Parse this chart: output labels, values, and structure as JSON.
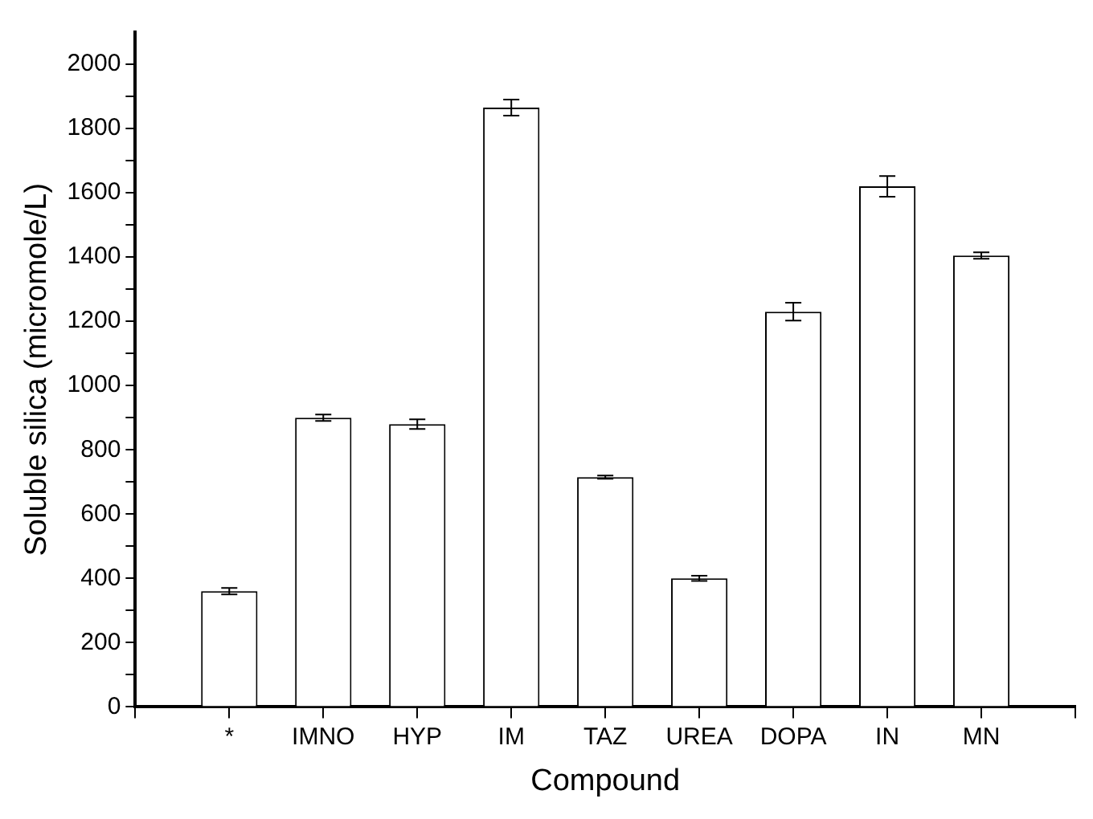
{
  "chart_data": {
    "type": "bar",
    "xlabel": "Compound",
    "ylabel": "Soluble silica (micromole/L)",
    "categories": [
      null,
      "*",
      "IMNO",
      "HYP",
      "IM",
      "TAZ",
      "UREA",
      "DOPA",
      "IN",
      "MN",
      null
    ],
    "values": [
      null,
      360,
      900,
      880,
      1865,
      715,
      400,
      1230,
      1620,
      1405,
      null
    ],
    "errors": [
      null,
      10,
      10,
      15,
      25,
      5,
      8,
      28,
      32,
      10,
      null
    ],
    "color": "#ffffff",
    "ylim": [
      0,
      2100
    ],
    "yticks": [
      0,
      {
        "value": 100,
        "label": null
      },
      200,
      {
        "value": 300,
        "label": null
      },
      400,
      {
        "value": 500,
        "label": null
      },
      600,
      {
        "value": 700,
        "label": null
      },
      800,
      {
        "value": 900,
        "label": null
      },
      1000,
      {
        "value": 1100,
        "label": null
      },
      1200,
      {
        "value": 1300,
        "label": null
      },
      1400,
      {
        "value": 1500,
        "label": null
      },
      1600,
      {
        "value": 1700,
        "label": null
      },
      1800,
      {
        "value": 1900,
        "label": null
      },
      2000
    ],
    "grid": false,
    "legend": false
  }
}
